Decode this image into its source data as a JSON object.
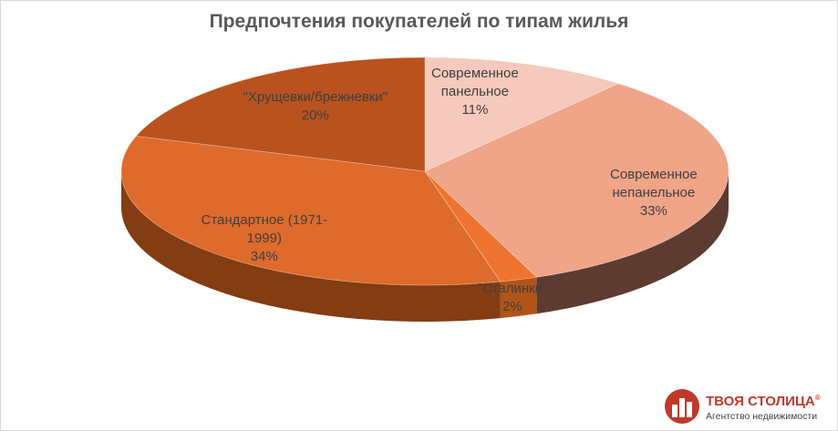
{
  "chart_data": {
    "type": "pie",
    "title": "Предпочтения покупателей по типам жилья",
    "categories": [
      "Современное панельное",
      "Современное непанельное",
      "\"Сталинки\"",
      "Стандартное (1971-1999)",
      "\"Хрущевки/брежневки\""
    ],
    "values": [
      11,
      33,
      2,
      34,
      20
    ],
    "value_labels": [
      "11%",
      "33%",
      "2%",
      "34%",
      "20%"
    ],
    "label_lines": [
      [
        "Современное",
        "панельное",
        "11%"
      ],
      [
        "Современное",
        "непанельное",
        "33%"
      ],
      [
        "\"Сталинки\"",
        "2%"
      ],
      [
        "Стандартное (1971-",
        "1999)",
        "34%"
      ],
      [
        "\"Хрущевки/брежневки\"",
        "20%"
      ]
    ],
    "colors": [
      "#f5c9bb",
      "#f0a488",
      "#ee7430",
      "#de6a2c",
      "#b9521e"
    ],
    "side_colors": [
      "#cfa698",
      "#5e3b30",
      "#b05418",
      "#843c12",
      "#6d2f10"
    ],
    "legend": "none",
    "style": "3d-pie"
  },
  "brand": {
    "name": "ТВОЯ СТОЛИЦА",
    "registered": "®",
    "tagline": "Агентство недвижимости",
    "color": "#c0392b"
  }
}
